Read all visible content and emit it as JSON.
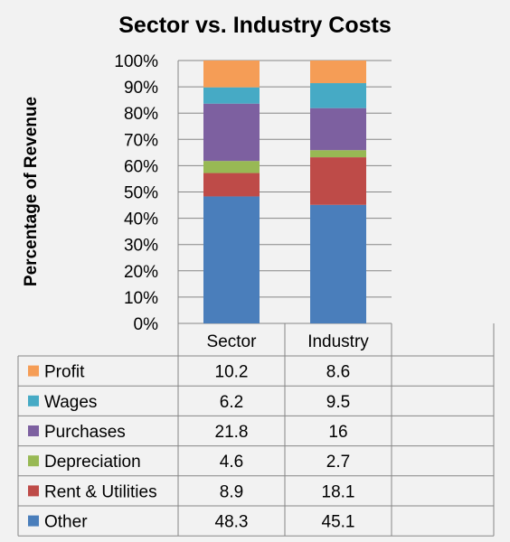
{
  "chart_data": {
    "type": "bar",
    "stacked": true,
    "title": "Sector vs. Industry Costs",
    "ylabel": "Percentage of Revenue",
    "xlabel": "",
    "ylim": [
      0,
      100
    ],
    "yticks": [
      "0%",
      "10%",
      "20%",
      "30%",
      "40%",
      "50%",
      "60%",
      "70%",
      "80%",
      "90%",
      "100%"
    ],
    "grid": true,
    "legend": "data-table",
    "categories": [
      "Sector",
      "Industry"
    ],
    "series": [
      {
        "name": "Other",
        "color": "#4a7ebb",
        "values": [
          48.3,
          45.1
        ],
        "labels": [
          "48.3",
          "45.1"
        ]
      },
      {
        "name": "Rent & Utilities",
        "color": "#be4b48",
        "values": [
          8.9,
          18.1
        ],
        "labels": [
          "8.9",
          "18.1"
        ]
      },
      {
        "name": "Depreciation",
        "color": "#98b954",
        "values": [
          4.6,
          2.7
        ],
        "labels": [
          "4.6",
          "2.7"
        ]
      },
      {
        "name": "Purchases",
        "color": "#7d60a0",
        "values": [
          21.8,
          16
        ],
        "labels": [
          "21.8",
          "16"
        ]
      },
      {
        "name": "Wages",
        "color": "#46aac5",
        "values": [
          6.2,
          9.5
        ],
        "labels": [
          "6.2",
          "9.5"
        ]
      },
      {
        "name": "Profit",
        "color": "#f59d56",
        "values": [
          10.2,
          8.6
        ],
        "labels": [
          "10.2",
          "8.6"
        ]
      }
    ]
  }
}
